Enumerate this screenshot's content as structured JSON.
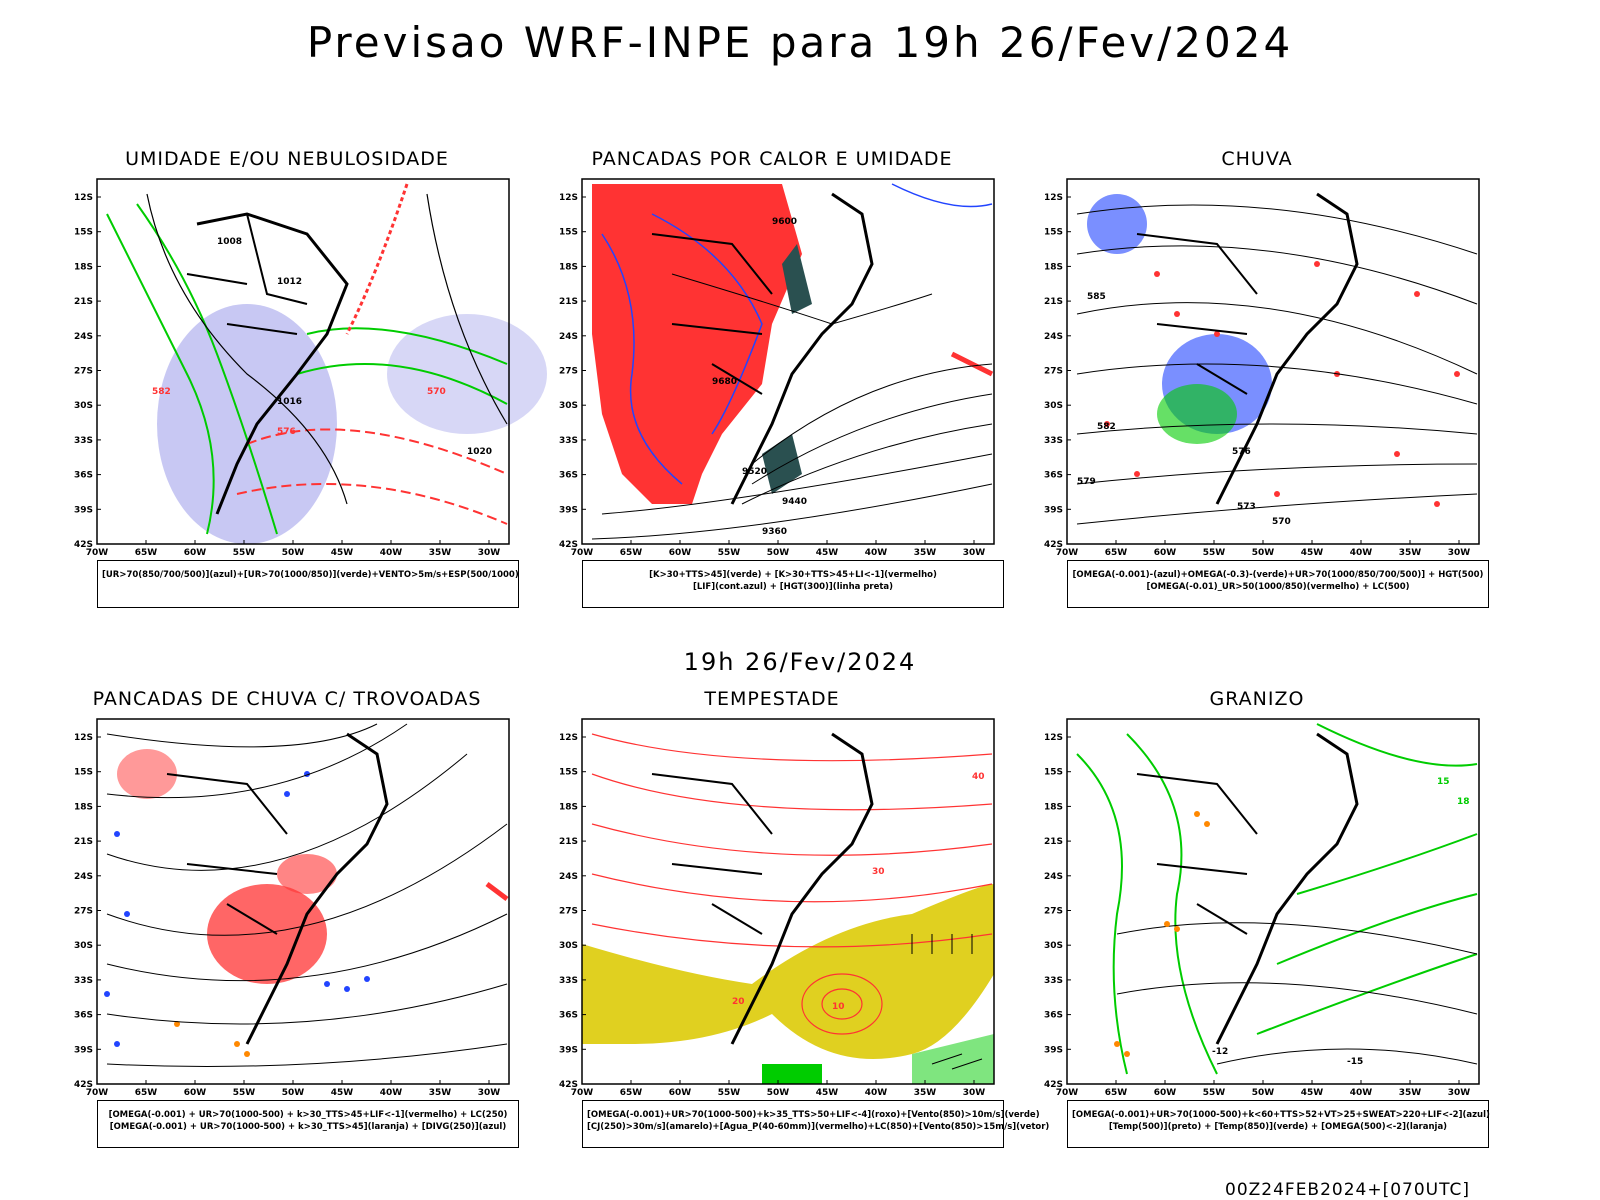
{
  "page": {
    "title": "Previsao WRF-INPE  para 19h 26/Fev/2024",
    "subtitle": "19h 26/Fev/2024",
    "footer": "00Z24FEB2024+[070UTC]"
  },
  "axes": {
    "lat_labels": [
      "12S",
      "15S",
      "18S",
      "21S",
      "24S",
      "27S",
      "30S",
      "33S",
      "36S",
      "39S",
      "42S"
    ],
    "lon_labels": [
      "70W",
      "65W",
      "60W",
      "55W",
      "50W",
      "45W",
      "40W",
      "35W",
      "30W"
    ]
  },
  "colors": {
    "green": "#00cc00",
    "blue": "#2244ff",
    "red": "#ff3333",
    "lavender": "#b0b0ee",
    "yellow": "#e0d020",
    "darkgreen": "#2a5050",
    "orange": "#ff8800"
  },
  "panels": [
    {
      "title": "UMIDADE E/OU NEBULOSIDADE",
      "legend": [
        "[UR>70(850/700/500)](azul)+[UR>70(1000/850)](verde)+VENTO>5m/s+ESP(500/1000)"
      ],
      "contour_labels": [
        "1008",
        "1012",
        "1016",
        "1020",
        "570",
        "576",
        "582"
      ]
    },
    {
      "title": "PANCADAS POR CALOR E UMIDADE",
      "legend": [
        "[K>30+TTS>45](verde) + [K>30+TTS>45+LI<-1](vermelho)",
        "[LIF](cont.azul) + [HGT(300)](linha preta)"
      ],
      "contour_labels": [
        "9600",
        "9680",
        "9520",
        "9440",
        "9360"
      ]
    },
    {
      "title": "CHUVA",
      "legend": [
        "[OMEGA(-0.001)-(azul)+OMEGA(-0.3)-(verde)+UR>70(1000/850/700/500)] + HGT(500)",
        "[OMEGA(-0.01)_UR>50(1000/850)(vermelho) + LC(500)"
      ],
      "contour_labels": [
        "585",
        "582",
        "579",
        "576",
        "573",
        "570"
      ]
    },
    {
      "title": "PANCADAS DE CHUVA C/ TROVOADAS",
      "legend": [
        "[OMEGA(-0.001) + UR>70(1000-500) + k>30_TTS>45+LIF<-1](vermelho) + LC(250)",
        "[OMEGA(-0.001) + UR>70(1000-500) + k>30_TTS>45](laranja) + [DIVG(250)](azul)"
      ],
      "contour_labels": []
    },
    {
      "title": "TEMPESTADE",
      "legend": [
        "[OMEGA(-0.001)+UR>70(1000-500)+k>35_TTS>50+LIF<-4](roxo)+[Vento(850)>10m/s](verde)",
        "[CJ(250)>30m/s](amarelo)+[Agua_P(40-60mm)](vermelho)+LC(850)+[Vento(850)>15m/s](vetor)"
      ],
      "contour_labels": [
        "40",
        "30",
        "20",
        "10"
      ]
    },
    {
      "title": "GRANIZO",
      "legend": [
        "[OMEGA(-0.001)+UR>70(1000-500)+k<60+TTS>52+VT>25+SWEAT>220+LIF<-2](azul)",
        "[Temp(500)](preto) + [Temp(850)](verde) + [OMEGA(500)<-2](laranja)"
      ],
      "contour_labels": [
        "-15",
        "-12",
        "15",
        "18"
      ]
    }
  ]
}
